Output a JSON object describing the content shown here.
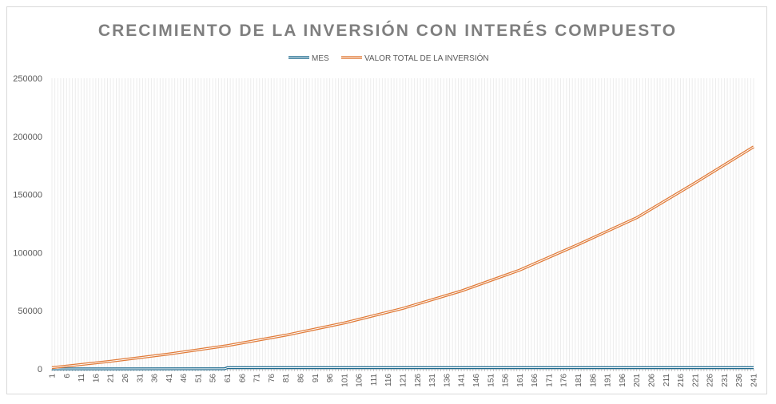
{
  "chart_data": {
    "type": "line",
    "title": "CRECIMIENTO DE LA INVERSIÓN CON INTERÉS COMPUESTO",
    "xlabel": "",
    "ylabel": "",
    "legend_position": "top",
    "grid": {
      "vertical": true,
      "horizontal": false
    },
    "ylim": [
      0,
      250000
    ],
    "yticks": [
      "0",
      "50000",
      "100000",
      "150000",
      "200000",
      "250000"
    ],
    "x_range": [
      1,
      241
    ],
    "xticks": [
      "1",
      "6",
      "11",
      "16",
      "21",
      "26",
      "31",
      "36",
      "41",
      "46",
      "51",
      "56",
      "61",
      "66",
      "71",
      "76",
      "81",
      "86",
      "91",
      "96",
      "101",
      "106",
      "111",
      "116",
      "121",
      "126",
      "131",
      "136",
      "141",
      "146",
      "151",
      "156",
      "161",
      "166",
      "171",
      "176",
      "181",
      "186",
      "191",
      "196",
      "201",
      "206",
      "211",
      "216",
      "221",
      "226",
      "231",
      "236",
      "241"
    ],
    "series": [
      {
        "name": "MES",
        "color": "#1f6b8f",
        "points": [
          [
            1,
            1
          ],
          [
            60,
            60
          ],
          [
            61,
            1000
          ],
          [
            241,
            1000
          ]
        ]
      },
      {
        "name": "VALOR TOTAL DE LA INVERSIÓN",
        "color": "#e07b39",
        "points": [
          [
            1,
            1000
          ],
          [
            21,
            6500
          ],
          [
            41,
            12800
          ],
          [
            61,
            20000
          ],
          [
            81,
            29000
          ],
          [
            101,
            39500
          ],
          [
            121,
            52000
          ],
          [
            141,
            67000
          ],
          [
            161,
            85000
          ],
          [
            181,
            107000
          ],
          [
            201,
            130000
          ],
          [
            221,
            160000
          ],
          [
            241,
            191000
          ]
        ]
      }
    ]
  }
}
